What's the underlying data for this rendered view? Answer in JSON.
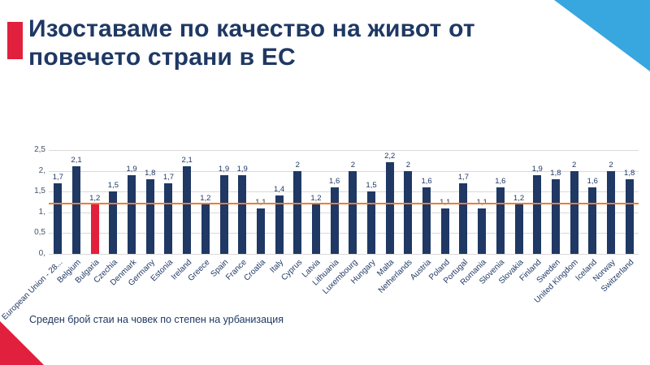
{
  "slide": {
    "title": "Изоставаме по качество на живот  от\nповечето страни в ЕС",
    "caption": "Среден брой стаи на човек по степен на урбанизация"
  },
  "colors": {
    "navy": "#1F3864",
    "red": "#E0203C",
    "light_blue": "#38A6DF",
    "orange": "#ED7D31",
    "gridline": "#D9D9D9",
    "axis_text": "#44546A"
  },
  "chart_data": {
    "type": "bar",
    "title": "Среден брой стаи на човек по степен на урбанизация",
    "xlabel": "",
    "ylabel": "",
    "ylim": [
      0,
      2.5
    ],
    "grid": true,
    "legend": "none",
    "categories": [
      "European Union - 28...",
      "Belgium",
      "Bulgaria",
      "Czechia",
      "Denmark",
      "Germany",
      "Estonia",
      "Ireland",
      "Greece",
      "Spain",
      "France",
      "Croatia",
      "Italy",
      "Cyprus",
      "Latvia",
      "Lithuania",
      "Luxembourg",
      "Hungary",
      "Malta",
      "Netherlands",
      "Austria",
      "Poland",
      "Portugal",
      "Romania",
      "Slovenia",
      "Slovakia",
      "Finland",
      "Sweden",
      "United Kingdom",
      "Iceland",
      "Norway",
      "Switzerland"
    ],
    "values": [
      1.7,
      2.1,
      1.2,
      1.5,
      1.9,
      1.8,
      1.7,
      2.1,
      1.2,
      1.9,
      1.9,
      1.1,
      1.4,
      2,
      1.2,
      1.6,
      2,
      1.5,
      2.2,
      2,
      1.6,
      1.1,
      1.7,
      1.1,
      1.6,
      1.2,
      1.9,
      1.8,
      2,
      1.6,
      2,
      1.8
    ],
    "value_labels": [
      "1,7",
      "2,1",
      "1,2",
      "1,5",
      "1,9",
      "1,8",
      "1,7",
      "2,1",
      "1,2",
      "1,9",
      "1,9",
      "1,1",
      "1,4",
      "2",
      "1,2",
      "1,6",
      "2",
      "1,5",
      "2,2",
      "2",
      "1,6",
      "1,1",
      "1,7",
      "1,1",
      "1,6",
      "1,2",
      "1,9",
      "1,8",
      "2",
      "1,6",
      "2",
      "1,8"
    ],
    "highlight_index": 2,
    "highlight_category": "Bulgaria",
    "y_ticks": [
      {
        "label": "0,",
        "value": 0
      },
      {
        "label": "0,5",
        "value": 0.5
      },
      {
        "label": "1,",
        "value": 1
      },
      {
        "label": "1,5",
        "value": 1.5
      },
      {
        "label": "2,",
        "value": 2
      },
      {
        "label": "2,5",
        "value": 2.5
      }
    ],
    "reference_line": {
      "value": 1.2
    }
  }
}
